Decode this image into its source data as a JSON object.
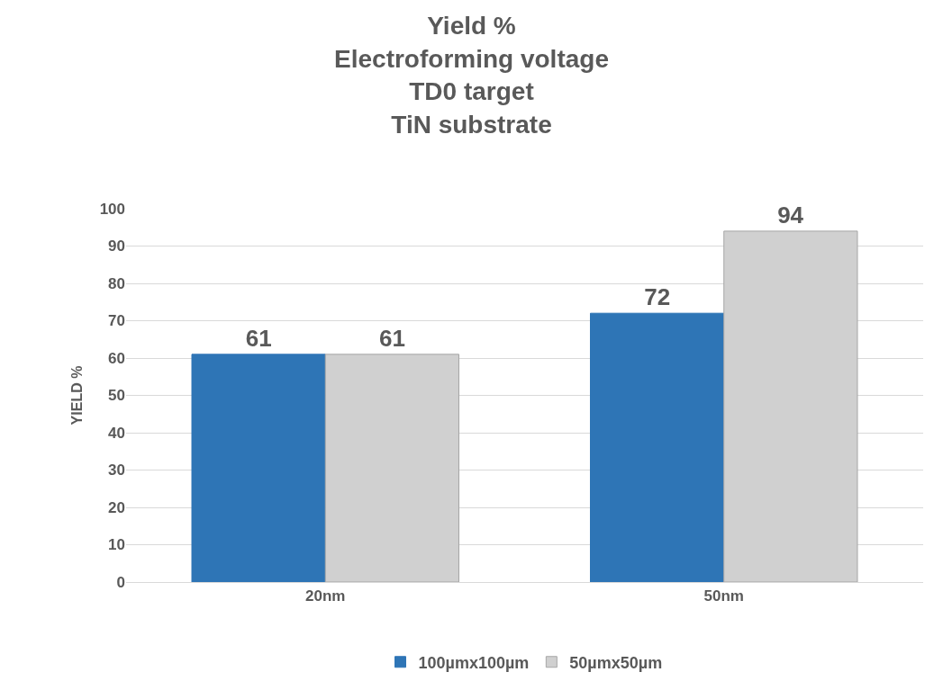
{
  "chart_data": {
    "type": "bar",
    "title": "Yield %\nElectroforming voltage\nTD0 target\nTiN substrate",
    "ylabel": "YIELD %",
    "categories": [
      "20nm",
      "50nm"
    ],
    "series": [
      {
        "name": "100µmx100µm",
        "color": "#2e75b6",
        "values": [
          61,
          72
        ]
      },
      {
        "name": "50µmx50µm",
        "color": "#d0d0d0",
        "values": [
          61,
          94
        ]
      }
    ],
    "ylim": [
      0,
      100
    ],
    "yticks": [
      0,
      10,
      20,
      30,
      40,
      50,
      60,
      70,
      80,
      90,
      100
    ],
    "grid": "y",
    "legend": "bottom",
    "data_labels": true
  }
}
